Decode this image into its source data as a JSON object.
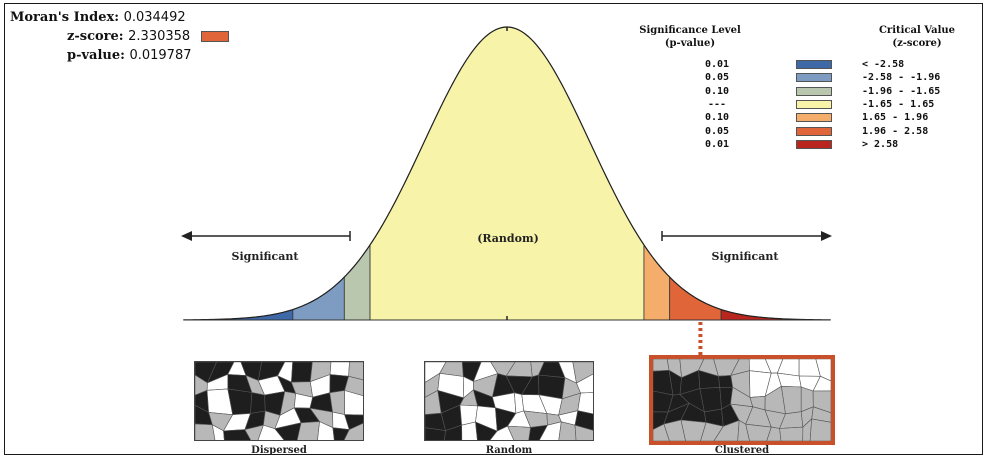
{
  "stats": {
    "moran_label": "Moran's Index:",
    "moran_value": "0.034492",
    "z_label": "z-score:",
    "z_value": "2.330358",
    "p_label": "p-value:",
    "p_value": "0.019787",
    "z_marker_color": "#e0663a"
  },
  "legend": {
    "header_sig_line1": "Significance Level",
    "header_sig_line2": "(p-value)",
    "header_crit_line1": "Critical Value",
    "header_crit_line2": "(z-score)",
    "rows": [
      {
        "p": "0.01",
        "z": "< -2.58",
        "color": "#3f68a6"
      },
      {
        "p": "0.05",
        "z": "-2.58 - -1.96",
        "color": "#7e9cc2"
      },
      {
        "p": "0.10",
        "z": "-1.96 - -1.65",
        "color": "#b8c7ad"
      },
      {
        "p": "---",
        "z": "-1.65 - 1.65",
        "color": "#f7f3a8"
      },
      {
        "p": "0.10",
        "z": "1.65 - 1.96",
        "color": "#f5ad6b"
      },
      {
        "p": "0.05",
        "z": "1.96 - 2.58",
        "color": "#e0663a"
      },
      {
        "p": "0.01",
        "z": "> 2.58",
        "color": "#b8261e"
      }
    ]
  },
  "curve": {
    "random_label": "(Random)",
    "significant_left": "Significant",
    "significant_right": "Significant",
    "z_score": 2.330358,
    "bands": [
      {
        "from": -3.6,
        "to": -2.58,
        "color": "#3f68a6"
      },
      {
        "from": -2.58,
        "to": -1.96,
        "color": "#7e9cc2"
      },
      {
        "from": -1.96,
        "to": -1.65,
        "color": "#b8c7ad"
      },
      {
        "from": -1.65,
        "to": 1.65,
        "color": "#f7f3a8"
      },
      {
        "from": 1.65,
        "to": 1.96,
        "color": "#f5ad6b"
      },
      {
        "from": 1.96,
        "to": 2.58,
        "color": "#e0663a"
      },
      {
        "from": 2.58,
        "to": 3.6,
        "color": "#b8261e"
      }
    ]
  },
  "patterns": {
    "dispersed": "Dispersed",
    "random": "Random",
    "clustered": "Clustered",
    "highlight_color": "#c8502a"
  }
}
